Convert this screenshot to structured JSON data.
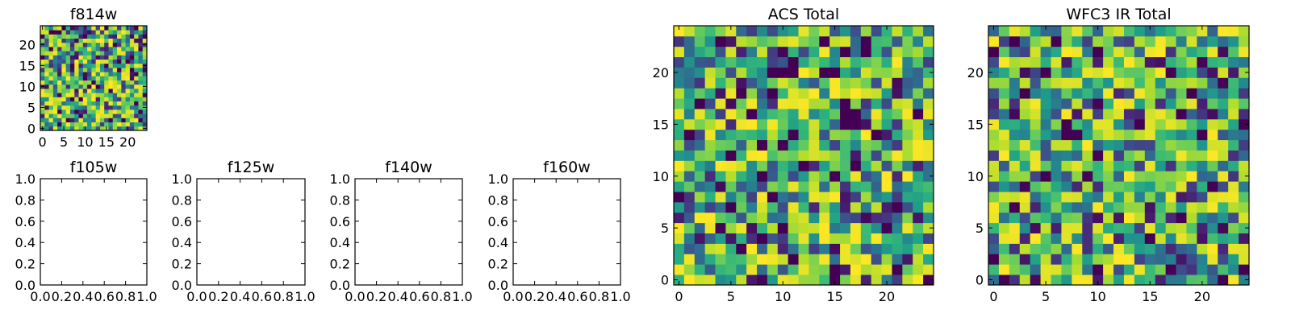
{
  "chart_data": [
    {
      "type": "heatmap",
      "title": "f814w",
      "grid_size": 25,
      "xlim": [
        -0.5,
        24.5
      ],
      "ylim": [
        -0.5,
        24.5
      ],
      "xticks": [
        0,
        5,
        10,
        15,
        20
      ],
      "yticks": [
        0,
        5,
        10,
        15,
        20
      ],
      "xticklabels": [
        "0",
        "5",
        "10",
        "15",
        "20"
      ],
      "yticklabels": [
        "0",
        "5",
        "10",
        "15",
        "20"
      ],
      "colormap": "viridis",
      "value_range": [
        0,
        1
      ],
      "seed": 11
    },
    {
      "type": "line",
      "title": "f105w",
      "xlim": [
        0,
        1
      ],
      "ylim": [
        0,
        1
      ],
      "xticklabels": [
        "0.0",
        "0.2",
        "0.4",
        "0.6",
        "0.8",
        "1.0"
      ],
      "yticklabels": [
        "0.0",
        "0.2",
        "0.4",
        "0.6",
        "0.8",
        "1.0"
      ],
      "series": []
    },
    {
      "type": "line",
      "title": "f125w",
      "xlim": [
        0,
        1
      ],
      "ylim": [
        0,
        1
      ],
      "xticklabels": [
        "0.0",
        "0.2",
        "0.4",
        "0.6",
        "0.8",
        "1.0"
      ],
      "yticklabels": [
        "0.0",
        "0.2",
        "0.4",
        "0.6",
        "0.8",
        "1.0"
      ],
      "series": []
    },
    {
      "type": "line",
      "title": "f140w",
      "xlim": [
        0,
        1
      ],
      "ylim": [
        0,
        1
      ],
      "xticklabels": [
        "0.0",
        "0.2",
        "0.4",
        "0.6",
        "0.8",
        "1.0"
      ],
      "yticklabels": [
        "0.0",
        "0.2",
        "0.4",
        "0.6",
        "0.8",
        "1.0"
      ],
      "series": []
    },
    {
      "type": "line",
      "title": "f160w",
      "xlim": [
        0,
        1
      ],
      "ylim": [
        0,
        1
      ],
      "xticklabels": [
        "0.0",
        "0.2",
        "0.4",
        "0.6",
        "0.8",
        "1.0"
      ],
      "yticklabels": [
        "0.0",
        "0.2",
        "0.4",
        "0.6",
        "0.8",
        "1.0"
      ],
      "series": []
    },
    {
      "type": "heatmap",
      "title": "ACS Total",
      "grid_size": 25,
      "xlim": [
        -0.5,
        24.5
      ],
      "ylim": [
        -0.5,
        24.5
      ],
      "xticks": [
        0,
        5,
        10,
        15,
        20
      ],
      "yticks": [
        0,
        5,
        10,
        15,
        20
      ],
      "xticklabels": [
        "0",
        "5",
        "10",
        "15",
        "20"
      ],
      "yticklabels": [
        "0",
        "5",
        "10",
        "15",
        "20"
      ],
      "colormap": "viridis",
      "value_range": [
        0,
        1
      ],
      "seed": 37
    },
    {
      "type": "heatmap",
      "title": "WFC3 IR Total",
      "grid_size": 25,
      "xlim": [
        -0.5,
        24.5
      ],
      "ylim": [
        -0.5,
        24.5
      ],
      "xticks": [
        0,
        5,
        10,
        15,
        20
      ],
      "yticks": [
        0,
        5,
        10,
        15,
        20
      ],
      "xticklabels": [
        "0",
        "5",
        "10",
        "15",
        "20"
      ],
      "yticklabels": [
        "0",
        "5",
        "10",
        "15",
        "20"
      ],
      "colormap": "viridis",
      "value_range": [
        0,
        1
      ],
      "seed": 73
    }
  ]
}
